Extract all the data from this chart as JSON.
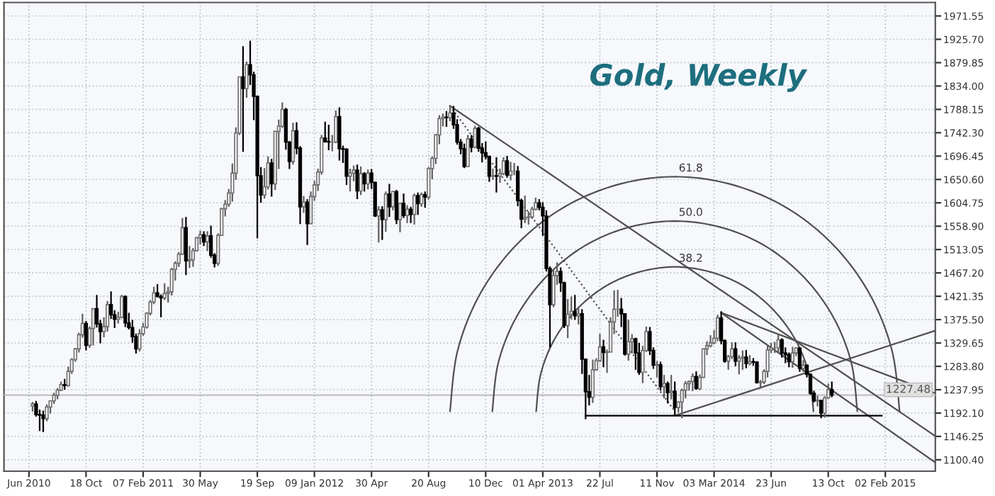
{
  "chart_data": {
    "type": "candlestick",
    "title": "Gold, Weekly",
    "grid": true,
    "xlim": [
      "2010-05-10",
      "2015-05-11"
    ],
    "xticks": [
      {
        "value": "2010-06-28",
        "label": "Jun 2010"
      },
      {
        "value": "2010-10-18",
        "label": "18 Oct"
      },
      {
        "value": "2011-02-07",
        "label": "07 Feb 2011"
      },
      {
        "value": "2011-05-30",
        "label": "30 May"
      },
      {
        "value": "2011-09-19",
        "label": "19 Sep"
      },
      {
        "value": "2012-01-09",
        "label": "09 Jan 2012"
      },
      {
        "value": "2012-04-30",
        "label": "30 Apr"
      },
      {
        "value": "2012-08-20",
        "label": "20 Aug"
      },
      {
        "value": "2012-12-10",
        "label": "10 Dec"
      },
      {
        "value": "2013-04-01",
        "label": "01 Apr 2013"
      },
      {
        "value": "2013-07-22",
        "label": "22 Jul"
      },
      {
        "value": "2013-11-11",
        "label": "11 Nov"
      },
      {
        "value": "2014-03-03",
        "label": "03 Mar 2014"
      },
      {
        "value": "2014-06-23",
        "label": "23 Jun"
      },
      {
        "value": "2014-10-13",
        "label": "13 Oct"
      },
      {
        "value": "2015-02-02",
        "label": "02 Feb 2015"
      }
    ],
    "ylim": [
      1078,
      1998
    ],
    "yticks": [
      {
        "value": 1100.4,
        "label": "1100.40"
      },
      {
        "value": 1146.25,
        "label": "1146.25"
      },
      {
        "value": 1192.1,
        "label": "1192.10"
      },
      {
        "value": 1237.95,
        "label": "1237.95"
      },
      {
        "value": 1283.8,
        "label": "1283.80"
      },
      {
        "value": 1329.65,
        "label": "1329.65"
      },
      {
        "value": 1375.5,
        "label": "1375.50"
      },
      {
        "value": 1421.35,
        "label": "1421.35"
      },
      {
        "value": 1467.2,
        "label": "1467.20"
      },
      {
        "value": 1513.05,
        "label": "1513.05"
      },
      {
        "value": 1558.9,
        "label": "1558.90"
      },
      {
        "value": 1604.75,
        "label": "1604.75"
      },
      {
        "value": 1650.6,
        "label": "1650.60"
      },
      {
        "value": 1696.45,
        "label": "1696.45"
      },
      {
        "value": 1742.3,
        "label": "1742.30"
      },
      {
        "value": 1788.15,
        "label": "1788.15"
      },
      {
        "value": 1834.0,
        "label": "1834.00"
      },
      {
        "value": 1879.85,
        "label": "1879.85"
      },
      {
        "value": 1925.7,
        "label": "1925.70"
      },
      {
        "value": 1971.55,
        "label": "1971.55"
      }
    ],
    "ref_lines": [
      {
        "axis": "y",
        "value": 1227.48,
        "label": "1227.48",
        "color": "#c0c0c0"
      }
    ],
    "annotations": [
      {
        "text": "61.8",
        "x": "2013-12-16",
        "y": 1656
      },
      {
        "text": "50.0",
        "x": "2013-12-16",
        "y": 1569
      },
      {
        "text": "38.2",
        "x": "2013-12-16",
        "y": 1479
      }
    ],
    "x": [
      "2010-07-05",
      "2010-07-12",
      "2010-07-19",
      "2010-07-26",
      "2010-08-02",
      "2010-08-09",
      "2010-08-16",
      "2010-08-23",
      "2010-08-30",
      "2010-09-06",
      "2010-09-13",
      "2010-09-20",
      "2010-09-27",
      "2010-10-04",
      "2010-10-11",
      "2010-10-18",
      "2010-10-25",
      "2010-11-01",
      "2010-11-08",
      "2010-11-15",
      "2010-11-22",
      "2010-11-29",
      "2010-12-06",
      "2010-12-13",
      "2010-12-20",
      "2010-12-27",
      "2011-01-03",
      "2011-01-10",
      "2011-01-17",
      "2011-01-24",
      "2011-01-31",
      "2011-02-07",
      "2011-02-14",
      "2011-02-21",
      "2011-02-28",
      "2011-03-07",
      "2011-03-14",
      "2011-03-21",
      "2011-03-28",
      "2011-04-04",
      "2011-04-11",
      "2011-04-18",
      "2011-04-25",
      "2011-05-02",
      "2011-05-09",
      "2011-05-16",
      "2011-05-23",
      "2011-05-30",
      "2011-06-06",
      "2011-06-13",
      "2011-06-20",
      "2011-06-27",
      "2011-07-04",
      "2011-07-11",
      "2011-07-18",
      "2011-07-25",
      "2011-08-01",
      "2011-08-08",
      "2011-08-15",
      "2011-08-22",
      "2011-08-29",
      "2011-09-05",
      "2011-09-12",
      "2011-09-19",
      "2011-09-26",
      "2011-10-03",
      "2011-10-10",
      "2011-10-17",
      "2011-10-24",
      "2011-10-31",
      "2011-11-07",
      "2011-11-14",
      "2011-11-21",
      "2011-11-28",
      "2011-12-05",
      "2011-12-12",
      "2011-12-19",
      "2011-12-26",
      "2012-01-02",
      "2012-01-09",
      "2012-01-16",
      "2012-01-23",
      "2012-01-30",
      "2012-02-06",
      "2012-02-13",
      "2012-02-20",
      "2012-02-27",
      "2012-03-05",
      "2012-03-12",
      "2012-03-19",
      "2012-03-26",
      "2012-04-02",
      "2012-04-09",
      "2012-04-16",
      "2012-04-23",
      "2012-04-30",
      "2012-05-07",
      "2012-05-14",
      "2012-05-21",
      "2012-05-28",
      "2012-06-04",
      "2012-06-11",
      "2012-06-18",
      "2012-06-25",
      "2012-07-02",
      "2012-07-09",
      "2012-07-16",
      "2012-07-23",
      "2012-07-30",
      "2012-08-06",
      "2012-08-13",
      "2012-08-20",
      "2012-08-27",
      "2012-09-03",
      "2012-09-10",
      "2012-09-17",
      "2012-09-24",
      "2012-10-01",
      "2012-10-08",
      "2012-10-15",
      "2012-10-22",
      "2012-10-29",
      "2012-11-05",
      "2012-11-12",
      "2012-11-19",
      "2012-11-26",
      "2012-12-03",
      "2012-12-10",
      "2012-12-17",
      "2012-12-24",
      "2012-12-31",
      "2013-01-07",
      "2013-01-14",
      "2013-01-21",
      "2013-01-28",
      "2013-02-04",
      "2013-02-11",
      "2013-02-18",
      "2013-02-25",
      "2013-03-04",
      "2013-03-11",
      "2013-03-18",
      "2013-03-25",
      "2013-04-01",
      "2013-04-08",
      "2013-04-15",
      "2013-04-22",
      "2013-04-29",
      "2013-05-06",
      "2013-05-13",
      "2013-05-20",
      "2013-05-27",
      "2013-06-03",
      "2013-06-10",
      "2013-06-17",
      "2013-06-24",
      "2013-07-01",
      "2013-07-08",
      "2013-07-15",
      "2013-07-22",
      "2013-07-29",
      "2013-08-05",
      "2013-08-12",
      "2013-08-19",
      "2013-08-26",
      "2013-09-02",
      "2013-09-09",
      "2013-09-16",
      "2013-09-23",
      "2013-09-30",
      "2013-10-07",
      "2013-10-14",
      "2013-10-21",
      "2013-10-28",
      "2013-11-04",
      "2013-11-11",
      "2013-11-18",
      "2013-11-25",
      "2013-12-02",
      "2013-12-09",
      "2013-12-16",
      "2013-12-23",
      "2013-12-30",
      "2014-01-06",
      "2014-01-13",
      "2014-01-20",
      "2014-01-27",
      "2014-02-03",
      "2014-02-10",
      "2014-02-17",
      "2014-02-24",
      "2014-03-03",
      "2014-03-10",
      "2014-03-17",
      "2014-03-24",
      "2014-03-31",
      "2014-04-07",
      "2014-04-14",
      "2014-04-21",
      "2014-04-28",
      "2014-05-05",
      "2014-05-12",
      "2014-05-19",
      "2014-05-26",
      "2014-06-02",
      "2014-06-09",
      "2014-06-16",
      "2014-06-23",
      "2014-06-30",
      "2014-07-07",
      "2014-07-14",
      "2014-07-21",
      "2014-07-28",
      "2014-08-04",
      "2014-08-11",
      "2014-08-18",
      "2014-08-25",
      "2014-09-01",
      "2014-09-08",
      "2014-09-15",
      "2014-09-22",
      "2014-09-29",
      "2014-10-06",
      "2014-10-13",
      "2014-10-20"
    ],
    "ohlc": [
      [
        1206,
        1214,
        1195,
        1210
      ],
      [
        1210,
        1216,
        1185,
        1189
      ],
      [
        1189,
        1199,
        1157,
        1188
      ],
      [
        1188,
        1197,
        1155,
        1181
      ],
      [
        1181,
        1209,
        1176,
        1204
      ],
      [
        1204,
        1216,
        1191,
        1216
      ],
      [
        1216,
        1232,
        1210,
        1227
      ],
      [
        1227,
        1241,
        1219,
        1237
      ],
      [
        1237,
        1254,
        1235,
        1248
      ],
      [
        1248,
        1259,
        1238,
        1246
      ],
      [
        1246,
        1283,
        1244,
        1274
      ],
      [
        1274,
        1300,
        1269,
        1297
      ],
      [
        1297,
        1320,
        1293,
        1318
      ],
      [
        1318,
        1350,
        1311,
        1346
      ],
      [
        1346,
        1387,
        1340,
        1368
      ],
      [
        1368,
        1373,
        1315,
        1325
      ],
      [
        1325,
        1362,
        1320,
        1358
      ],
      [
        1358,
        1398,
        1325,
        1397
      ],
      [
        1397,
        1424,
        1360,
        1367
      ],
      [
        1367,
        1375,
        1329,
        1352
      ],
      [
        1352,
        1380,
        1341,
        1362
      ],
      [
        1362,
        1412,
        1352,
        1405
      ],
      [
        1405,
        1431,
        1377,
        1385
      ],
      [
        1385,
        1394,
        1359,
        1376
      ],
      [
        1376,
        1391,
        1368,
        1380
      ],
      [
        1380,
        1424,
        1378,
        1421
      ],
      [
        1421,
        1423,
        1361,
        1369
      ],
      [
        1369,
        1389,
        1356,
        1360
      ],
      [
        1360,
        1375,
        1330,
        1342
      ],
      [
        1342,
        1348,
        1309,
        1318
      ],
      [
        1318,
        1357,
        1313,
        1348
      ],
      [
        1348,
        1369,
        1344,
        1361
      ],
      [
        1361,
        1390,
        1358,
        1388
      ],
      [
        1388,
        1414,
        1384,
        1410
      ],
      [
        1410,
        1440,
        1406,
        1428
      ],
      [
        1428,
        1445,
        1419,
        1421
      ],
      [
        1421,
        1425,
        1380,
        1418
      ],
      [
        1418,
        1447,
        1414,
        1427
      ],
      [
        1427,
        1440,
        1409,
        1430
      ],
      [
        1430,
        1477,
        1423,
        1474
      ],
      [
        1474,
        1490,
        1452,
        1486
      ],
      [
        1486,
        1508,
        1479,
        1504
      ],
      [
        1504,
        1575,
        1503,
        1556
      ],
      [
        1556,
        1577,
        1463,
        1491
      ],
      [
        1491,
        1520,
        1477,
        1493
      ],
      [
        1493,
        1516,
        1479,
        1511
      ],
      [
        1511,
        1538,
        1509,
        1536
      ],
      [
        1536,
        1550,
        1523,
        1542
      ],
      [
        1542,
        1549,
        1520,
        1528
      ],
      [
        1528,
        1549,
        1510,
        1540
      ],
      [
        1540,
        1560,
        1497,
        1502
      ],
      [
        1502,
        1506,
        1478,
        1486
      ],
      [
        1486,
        1545,
        1481,
        1541
      ],
      [
        1541,
        1595,
        1540,
        1593
      ],
      [
        1593,
        1610,
        1578,
        1602
      ],
      [
        1602,
        1632,
        1597,
        1624
      ],
      [
        1624,
        1682,
        1607,
        1663
      ],
      [
        1663,
        1753,
        1650,
        1742
      ],
      [
        1742,
        1852,
        1738,
        1852
      ],
      [
        1852,
        1912,
        1705,
        1829
      ],
      [
        1829,
        1882,
        1811,
        1876
      ],
      [
        1876,
        1923,
        1836,
        1856
      ],
      [
        1856,
        1862,
        1767,
        1814
      ],
      [
        1814,
        1815,
        1535,
        1658
      ],
      [
        1658,
        1675,
        1605,
        1620
      ],
      [
        1620,
        1673,
        1613,
        1636
      ],
      [
        1636,
        1696,
        1631,
        1683
      ],
      [
        1683,
        1691,
        1617,
        1642
      ],
      [
        1642,
        1746,
        1630,
        1745
      ],
      [
        1745,
        1768,
        1671,
        1755
      ],
      [
        1755,
        1802,
        1752,
        1788
      ],
      [
        1788,
        1791,
        1709,
        1724
      ],
      [
        1724,
        1726,
        1671,
        1686
      ],
      [
        1686,
        1762,
        1680,
        1746
      ],
      [
        1746,
        1763,
        1700,
        1712
      ],
      [
        1712,
        1716,
        1563,
        1597
      ],
      [
        1597,
        1618,
        1585,
        1606
      ],
      [
        1606,
        1612,
        1522,
        1564
      ],
      [
        1564,
        1627,
        1563,
        1617
      ],
      [
        1617,
        1648,
        1609,
        1640
      ],
      [
        1640,
        1672,
        1628,
        1665
      ],
      [
        1665,
        1738,
        1660,
        1732
      ],
      [
        1732,
        1764,
        1723,
        1725
      ],
      [
        1725,
        1758,
        1708,
        1724
      ],
      [
        1724,
        1738,
        1706,
        1724
      ],
      [
        1724,
        1786,
        1722,
        1774
      ],
      [
        1774,
        1792,
        1688,
        1711
      ],
      [
        1711,
        1717,
        1683,
        1710
      ],
      [
        1710,
        1712,
        1640,
        1657
      ],
      [
        1657,
        1672,
        1627,
        1663
      ],
      [
        1663,
        1678,
        1647,
        1669
      ],
      [
        1669,
        1680,
        1612,
        1628
      ],
      [
        1628,
        1676,
        1620,
        1662
      ],
      [
        1662,
        1665,
        1627,
        1642
      ],
      [
        1642,
        1670,
        1631,
        1663
      ],
      [
        1663,
        1671,
        1632,
        1645
      ],
      [
        1645,
        1646,
        1577,
        1579
      ],
      [
        1579,
        1598,
        1527,
        1591
      ],
      [
        1591,
        1598,
        1532,
        1572
      ],
      [
        1572,
        1627,
        1548,
        1622
      ],
      [
        1622,
        1642,
        1577,
        1597
      ],
      [
        1597,
        1628,
        1590,
        1627
      ],
      [
        1627,
        1630,
        1563,
        1572
      ],
      [
        1572,
        1605,
        1547,
        1604
      ],
      [
        1604,
        1623,
        1575,
        1580
      ],
      [
        1580,
        1600,
        1565,
        1592
      ],
      [
        1592,
        1597,
        1565,
        1582
      ],
      [
        1582,
        1623,
        1562,
        1619
      ],
      [
        1619,
        1625,
        1581,
        1603
      ],
      [
        1603,
        1625,
        1597,
        1621
      ],
      [
        1621,
        1627,
        1595,
        1616
      ],
      [
        1616,
        1675,
        1611,
        1672
      ],
      [
        1672,
        1696,
        1651,
        1692
      ],
      [
        1692,
        1740,
        1681,
        1738
      ],
      [
        1738,
        1777,
        1720,
        1770
      ],
      [
        1770,
        1780,
        1755,
        1773
      ],
      [
        1773,
        1785,
        1754,
        1772
      ],
      [
        1772,
        1796,
        1765,
        1781
      ],
      [
        1781,
        1795,
        1750,
        1758
      ],
      [
        1758,
        1769,
        1719,
        1724
      ],
      [
        1724,
        1730,
        1700,
        1711
      ],
      [
        1711,
        1721,
        1673,
        1676
      ],
      [
        1676,
        1738,
        1675,
        1730
      ],
      [
        1730,
        1738,
        1704,
        1714
      ],
      [
        1714,
        1756,
        1712,
        1751
      ],
      [
        1751,
        1754,
        1705,
        1712
      ],
      [
        1712,
        1722,
        1684,
        1703
      ],
      [
        1703,
        1725,
        1690,
        1696
      ],
      [
        1696,
        1697,
        1646,
        1657
      ],
      [
        1657,
        1672,
        1650,
        1658
      ],
      [
        1658,
        1694,
        1625,
        1657
      ],
      [
        1657,
        1672,
        1644,
        1662
      ],
      [
        1662,
        1694,
        1659,
        1687
      ],
      [
        1687,
        1697,
        1654,
        1659
      ],
      [
        1659,
        1685,
        1649,
        1667
      ],
      [
        1667,
        1683,
        1659,
        1667
      ],
      [
        1667,
        1677,
        1598,
        1609
      ],
      [
        1609,
        1613,
        1555,
        1573
      ],
      [
        1573,
        1619,
        1565,
        1576
      ],
      [
        1576,
        1588,
        1562,
        1577
      ],
      [
        1577,
        1597,
        1573,
        1592
      ],
      [
        1592,
        1615,
        1590,
        1605
      ],
      [
        1605,
        1612,
        1590,
        1596
      ],
      [
        1596,
        1606,
        1540,
        1579
      ],
      [
        1579,
        1590,
        1470,
        1476
      ],
      [
        1476,
        1480,
        1321,
        1405
      ],
      [
        1405,
        1474,
        1400,
        1462
      ],
      [
        1462,
        1488,
        1444,
        1470
      ],
      [
        1470,
        1478,
        1430,
        1448
      ],
      [
        1448,
        1450,
        1359,
        1364
      ],
      [
        1364,
        1416,
        1339,
        1386
      ],
      [
        1386,
        1421,
        1376,
        1392
      ],
      [
        1392,
        1424,
        1375,
        1383
      ],
      [
        1383,
        1398,
        1366,
        1387
      ],
      [
        1387,
        1396,
        1269,
        1298
      ],
      [
        1298,
        1299,
        1180,
        1234
      ],
      [
        1234,
        1267,
        1207,
        1223
      ],
      [
        1223,
        1297,
        1212,
        1277
      ],
      [
        1277,
        1300,
        1275,
        1295
      ],
      [
        1295,
        1348,
        1292,
        1322
      ],
      [
        1322,
        1336,
        1282,
        1311
      ],
      [
        1311,
        1317,
        1271,
        1312
      ],
      [
        1312,
        1380,
        1311,
        1371
      ],
      [
        1371,
        1433,
        1347,
        1396
      ],
      [
        1396,
        1434,
        1381,
        1396
      ],
      [
        1396,
        1418,
        1361,
        1387
      ],
      [
        1387,
        1388,
        1305,
        1308
      ],
      [
        1308,
        1375,
        1295,
        1332
      ],
      [
        1332,
        1347,
        1309,
        1338
      ],
      [
        1338,
        1340,
        1277,
        1310
      ],
      [
        1310,
        1330,
        1267,
        1272
      ],
      [
        1272,
        1324,
        1251,
        1315
      ],
      [
        1315,
        1362,
        1312,
        1352
      ],
      [
        1352,
        1361,
        1306,
        1315
      ],
      [
        1315,
        1321,
        1279,
        1286
      ],
      [
        1286,
        1294,
        1262,
        1287
      ],
      [
        1287,
        1293,
        1236,
        1244
      ],
      [
        1244,
        1267,
        1221,
        1250
      ],
      [
        1250,
        1254,
        1211,
        1232
      ],
      [
        1232,
        1267,
        1219,
        1235
      ],
      [
        1235,
        1254,
        1187,
        1203
      ],
      [
        1203,
        1215,
        1193,
        1214
      ],
      [
        1214,
        1240,
        1182,
        1237
      ],
      [
        1237,
        1255,
        1221,
        1250
      ],
      [
        1250,
        1256,
        1236,
        1254
      ],
      [
        1254,
        1270,
        1235,
        1264
      ],
      [
        1264,
        1274,
        1238,
        1240
      ],
      [
        1240,
        1268,
        1237,
        1262
      ],
      [
        1262,
        1319,
        1261,
        1318
      ],
      [
        1318,
        1333,
        1306,
        1324
      ],
      [
        1324,
        1345,
        1321,
        1330
      ],
      [
        1330,
        1355,
        1327,
        1339
      ],
      [
        1339,
        1385,
        1333,
        1379
      ],
      [
        1379,
        1392,
        1327,
        1334
      ],
      [
        1334,
        1337,
        1291,
        1294
      ],
      [
        1294,
        1306,
        1277,
        1303
      ],
      [
        1303,
        1331,
        1298,
        1318
      ],
      [
        1318,
        1331,
        1284,
        1294
      ],
      [
        1294,
        1306,
        1268,
        1300
      ],
      [
        1300,
        1315,
        1277,
        1302
      ],
      [
        1302,
        1316,
        1280,
        1289
      ],
      [
        1289,
        1306,
        1286,
        1293
      ],
      [
        1293,
        1300,
        1285,
        1292
      ],
      [
        1292,
        1294,
        1250,
        1252
      ],
      [
        1252,
        1257,
        1240,
        1253
      ],
      [
        1253,
        1278,
        1249,
        1274
      ],
      [
        1274,
        1325,
        1262,
        1316
      ],
      [
        1316,
        1330,
        1310,
        1320
      ],
      [
        1320,
        1332,
        1310,
        1320
      ],
      [
        1320,
        1346,
        1310,
        1336
      ],
      [
        1336,
        1339,
        1301,
        1310
      ],
      [
        1310,
        1321,
        1290,
        1307
      ],
      [
        1307,
        1311,
        1282,
        1293
      ],
      [
        1293,
        1322,
        1281,
        1310
      ],
      [
        1310,
        1321,
        1304,
        1320
      ],
      [
        1320,
        1320,
        1273,
        1280
      ],
      [
        1280,
        1296,
        1273,
        1286
      ],
      [
        1286,
        1287,
        1262,
        1268
      ],
      [
        1268,
        1270,
        1228,
        1231
      ],
      [
        1231,
        1236,
        1213,
        1216
      ],
      [
        1216,
        1226,
        1205,
        1217
      ],
      [
        1217,
        1218,
        1182,
        1192
      ],
      [
        1192,
        1225,
        1183,
        1222
      ],
      [
        1222,
        1250,
        1220,
        1238
      ],
      [
        1238,
        1254,
        1223,
        1227.48
      ]
    ],
    "series": [
      {
        "type": "line",
        "color": "#505050",
        "x": [
          "2012-10-01",
          "2015-05-11"
        ],
        "values": [
          1795,
          1147
        ]
      },
      {
        "type": "line",
        "color": "#505050",
        "x": [
          "2014-03-17",
          "2015-05-11"
        ],
        "values": [
          1389,
          1231
        ]
      },
      {
        "type": "line",
        "color": "#505050",
        "x": [
          "2014-03-17",
          "2015-05-11"
        ],
        "values": [
          1389,
          1095
        ]
      },
      {
        "type": "line",
        "color": "#505050",
        "x": [
          "2013-12-16",
          "2015-05-11"
        ],
        "values": [
          1187,
          1354
        ]
      },
      {
        "type": "line",
        "color": "#000000",
        "x": [
          "2013-06-24",
          "2015-01-26"
        ],
        "values": [
          1187,
          1187
        ]
      },
      {
        "type": "line",
        "color": "#505050",
        "line_style": "dotted",
        "x": [
          "2012-10-01",
          "2013-12-16"
        ],
        "values": [
          1795,
          1196
        ]
      },
      {
        "type": "line",
        "color": "#505050",
        "x": [
          "2012-10-01",
          "2012-10-16",
          "2012-11-29",
          "2013-02-07",
          "2013-05-09",
          "2013-08-24",
          "2013-12-16",
          "2014-04-09",
          "2014-07-25",
          "2014-10-24",
          "2015-01-02",
          "2015-02-15",
          "2015-03-02"
        ],
        "values": [
          1196,
          1315,
          1426,
          1521,
          1594,
          1640,
          1656,
          1640,
          1594,
          1521,
          1426,
          1315,
          1196
        ]
      },
      {
        "type": "line",
        "color": "#505050",
        "x": [
          "2012-12-23",
          "2013-01-04",
          "2013-02-09",
          "2013-04-07",
          "2013-06-20",
          "2013-09-14",
          "2013-12-16",
          "2014-03-19",
          "2014-06-13",
          "2014-08-26",
          "2014-10-22",
          "2014-11-27",
          "2014-12-09"
        ],
        "values": [
          1196,
          1292,
          1382,
          1459,
          1519,
          1556,
          1569,
          1556,
          1519,
          1459,
          1382,
          1292,
          1196
        ]
      },
      {
        "type": "line",
        "color": "#505050",
        "x": [
          "2013-03-19",
          "2013-03-28",
          "2013-04-24",
          "2013-06-07",
          "2013-08-02",
          "2013-10-07",
          "2013-12-16",
          "2014-02-24",
          "2014-05-01",
          "2014-06-26",
          "2014-08-09",
          "2014-09-05",
          "2014-09-14"
        ],
        "values": [
          1196,
          1269,
          1337,
          1396,
          1441,
          1469,
          1479,
          1469,
          1441,
          1396,
          1337,
          1269,
          1196
        ]
      }
    ]
  }
}
